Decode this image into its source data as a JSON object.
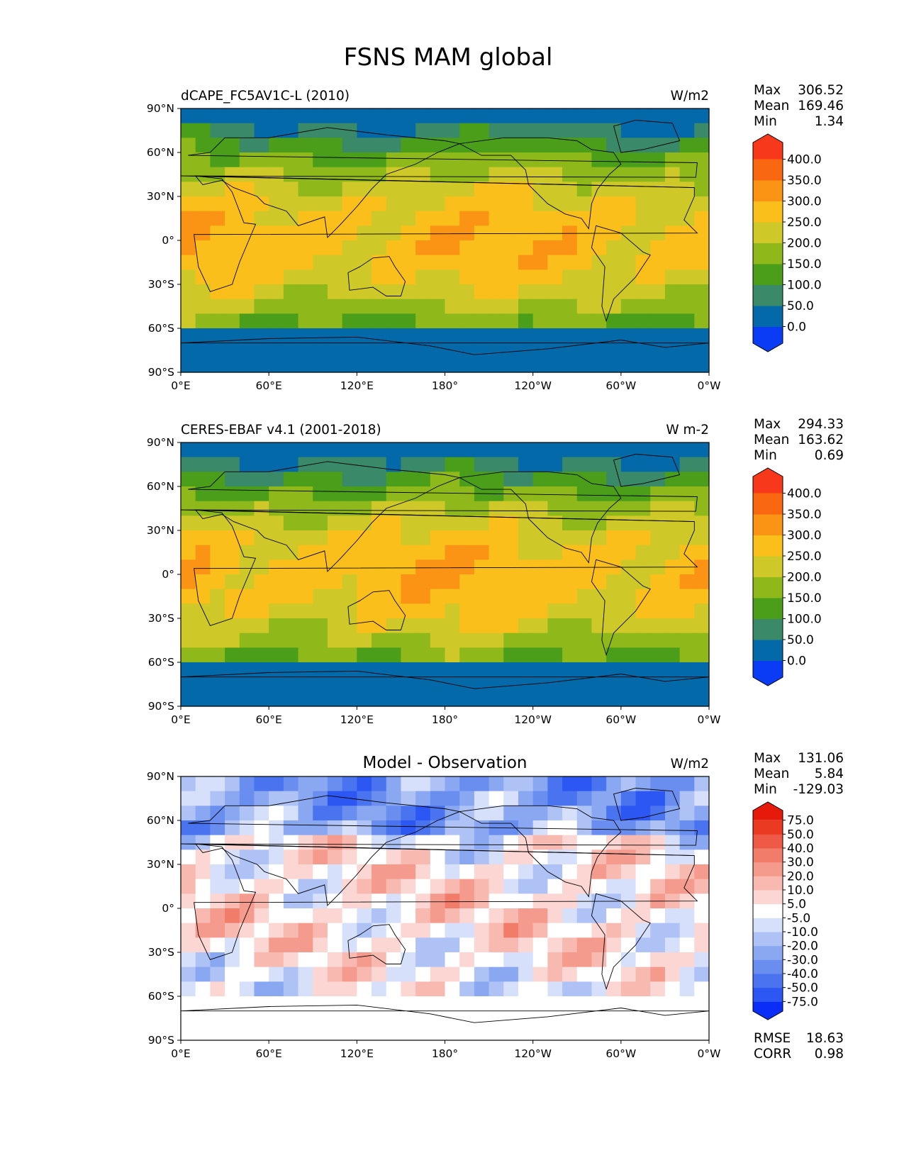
{
  "title": "FSNS MAM global",
  "panels": [
    {
      "left_title": "dCAPE_FC5AV1C-L (2010)",
      "center_title": "",
      "units": "W/m2",
      "stats": [
        {
          "label": "Max",
          "value": "306.52"
        },
        {
          "label": "Mean",
          "value": "169.46"
        },
        {
          "label": "Min",
          "value": "1.34"
        }
      ],
      "colorbar": {
        "ticks": [
          "0.0",
          "50.0",
          "100.0",
          "150.0",
          "200.0",
          "250.0",
          "300.0",
          "350.0",
          "400.0"
        ],
        "colors": [
          "#0a3cf5",
          "#0469a8",
          "#3a8a6a",
          "#4a9e1a",
          "#8fb81a",
          "#cfc829",
          "#fbbf1c",
          "#fb9314",
          "#f96710",
          "#f8381a"
        ],
        "extend": "both"
      }
    },
    {
      "left_title": "CERES-EBAF v4.1 (2001-2018)",
      "center_title": "",
      "units": "W m-2",
      "stats": [
        {
          "label": "Max",
          "value": "294.33"
        },
        {
          "label": "Mean",
          "value": "163.62"
        },
        {
          "label": "Min",
          "value": "0.69"
        }
      ],
      "colorbar": {
        "ticks": [
          "0.0",
          "50.0",
          "100.0",
          "150.0",
          "200.0",
          "250.0",
          "300.0",
          "350.0",
          "400.0"
        ],
        "colors": [
          "#0a3cf5",
          "#0469a8",
          "#3a8a6a",
          "#4a9e1a",
          "#8fb81a",
          "#cfc829",
          "#fbbf1c",
          "#fb9314",
          "#f96710",
          "#f8381a"
        ],
        "extend": "both"
      }
    },
    {
      "left_title": "",
      "center_title": "Model - Observation",
      "units": "W/m2",
      "stats": [
        {
          "label": "Max",
          "value": "131.06"
        },
        {
          "label": "Mean",
          "value": "5.84"
        },
        {
          "label": "Min",
          "value": "-129.03"
        }
      ],
      "colorbar": {
        "ticks": [
          "-75.0",
          "-50.0",
          "-40.0",
          "-30.0",
          "-20.0",
          "-10.0",
          "-5.0",
          "5.0",
          "10.0",
          "20.0",
          "30.0",
          "40.0",
          "50.0",
          "75.0"
        ],
        "colors": [
          "#0a2ef8",
          "#2c57f3",
          "#4a73ef",
          "#6a8ef0",
          "#8aa8f2",
          "#aec2f6",
          "#d6e0fb",
          "#ffffff",
          "#fbd6d2",
          "#f8b9b0",
          "#f59b8d",
          "#f27c6a",
          "#ee5a46",
          "#ea3a22",
          "#e61a0a"
        ],
        "extend": "both"
      },
      "extra_stats": [
        {
          "label": "RMSE",
          "value": "18.63"
        },
        {
          "label": "CORR",
          "value": "0.98"
        }
      ]
    }
  ],
  "lon_labels": [
    "0°E",
    "60°E",
    "120°E",
    "180°",
    "120°W",
    "60°W",
    "0°W"
  ],
  "lat_labels": [
    "90°N",
    "60°N",
    "30°N",
    "0°",
    "30°S",
    "60°S",
    "90°S"
  ],
  "chart_data": [
    {
      "type": "heatmap",
      "variable": "FSNS",
      "season": "MAM",
      "units": "W/m2",
      "stats": {
        "max": 306.52,
        "mean": 169.46,
        "min": 1.34
      },
      "levels": [
        0,
        50,
        100,
        150,
        200,
        250,
        300,
        350,
        400
      ],
      "xlim": [
        0,
        360
      ],
      "ylim": [
        -90,
        90
      ]
    },
    {
      "type": "heatmap",
      "variable": "FSNS",
      "season": "MAM",
      "units": "W m-2",
      "stats": {
        "max": 294.33,
        "mean": 163.62,
        "min": 0.69
      },
      "levels": [
        0,
        50,
        100,
        150,
        200,
        250,
        300,
        350,
        400
      ],
      "xlim": [
        0,
        360
      ],
      "ylim": [
        -90,
        90
      ]
    },
    {
      "type": "heatmap",
      "variable": "FSNS difference",
      "season": "MAM",
      "units": "W/m2",
      "stats": {
        "max": 131.06,
        "mean": 5.84,
        "min": -129.03,
        "rmse": 18.63,
        "corr": 0.98
      },
      "levels": [
        -75,
        -50,
        -40,
        -30,
        -20,
        -10,
        -5,
        5,
        10,
        20,
        30,
        40,
        50,
        75
      ],
      "xlim": [
        0,
        360
      ],
      "ylim": [
        -90,
        90
      ]
    }
  ]
}
